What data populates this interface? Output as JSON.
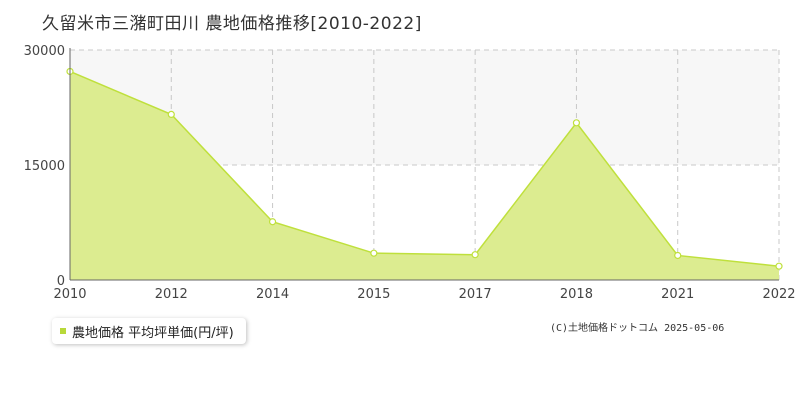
{
  "title": "久留米市三潴町田川 農地価格推移[2010-2022]",
  "legend": {
    "label": "農地価格 平均坪単価(円/坪)"
  },
  "copyright": "(C)土地価格ドットコム 2025-05-06",
  "colors": {
    "fill": "#dcec90",
    "line": "#bfe03c",
    "marker_stroke": "#bfe03c",
    "grid": "#c8c8c8",
    "band": "#f7f7f7"
  },
  "chart_data": {
    "type": "area",
    "title": "久留米市三潴町田川 農地価格推移[2010-2022]",
    "xlabel": "",
    "ylabel": "",
    "x_ticks": [
      "2010",
      "2012",
      "2014",
      "2015",
      "2017",
      "2018",
      "2021",
      "2022"
    ],
    "y_ticks": [
      "0",
      "15000",
      "30000"
    ],
    "ylim": [
      0,
      30000
    ],
    "grid": true,
    "legend_position": "bottom-left",
    "series": [
      {
        "name": "農地価格 平均坪単価(円/坪)",
        "points": [
          {
            "x": "2010",
            "y": 27200
          },
          {
            "x": "2012",
            "y": 21600
          },
          {
            "x": "2014",
            "y": 7600
          },
          {
            "x": "2015",
            "y": 3500
          },
          {
            "x": "2017",
            "y": 3300
          },
          {
            "x": "2018",
            "y": 20500
          },
          {
            "x": "2021",
            "y": 3200
          },
          {
            "x": "2022",
            "y": 1800
          }
        ]
      }
    ]
  }
}
